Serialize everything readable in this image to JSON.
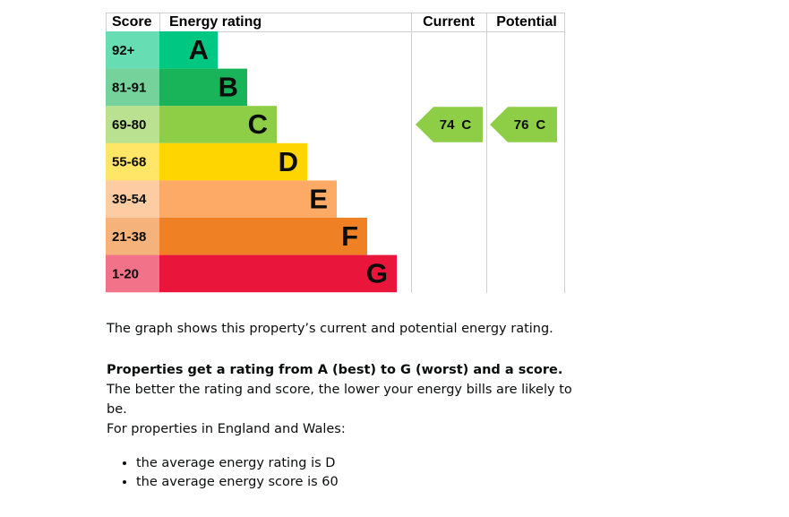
{
  "header": {
    "score": "Score",
    "rating": "Energy rating",
    "current": "Current",
    "potential": "Potential"
  },
  "bands": [
    {
      "range": "92+",
      "letter": "A",
      "color": "#00c781"
    },
    {
      "range": "81-91",
      "letter": "B",
      "color": "#19b459"
    },
    {
      "range": "69-80",
      "letter": "C",
      "color": "#8dce46"
    },
    {
      "range": "55-68",
      "letter": "D",
      "color": "#ffd500"
    },
    {
      "range": "39-54",
      "letter": "E",
      "color": "#fcaa65"
    },
    {
      "range": "21-38",
      "letter": "F",
      "color": "#ef8023"
    },
    {
      "range": "1-20",
      "letter": "G",
      "color": "#e9153b"
    }
  ],
  "current": {
    "score": 74,
    "band": "C"
  },
  "potential": {
    "score": 76,
    "band": "C"
  },
  "text": {
    "intro": "The graph shows this property’s current and potential energy rating.",
    "bold": "Properties get a rating from A (best) to G (worst) and a score.",
    "rest": " The better the rating and score, the lower your energy bills are likely to be.",
    "region": "For properties in England and Wales:",
    "bullets": [
      "the average energy rating is D",
      "the average energy score is 60"
    ]
  }
}
